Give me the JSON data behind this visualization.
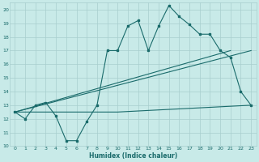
{
  "title": "",
  "xlabel": "Humidex (Indice chaleur)",
  "ylabel": "",
  "bg_color": "#c8eae8",
  "grid_color": "#a8cece",
  "line_color": "#1a6b6b",
  "xlim": [
    -0.5,
    23.5
  ],
  "ylim": [
    10,
    20.5
  ],
  "yticks": [
    10,
    11,
    12,
    13,
    14,
    15,
    16,
    17,
    18,
    19,
    20
  ],
  "xticks": [
    0,
    1,
    2,
    3,
    4,
    5,
    6,
    7,
    8,
    9,
    10,
    11,
    12,
    13,
    14,
    15,
    16,
    17,
    18,
    19,
    20,
    21,
    22,
    23
  ],
  "main_x": [
    0,
    1,
    2,
    3,
    4,
    5,
    6,
    7,
    8,
    9,
    10,
    11,
    12,
    13,
    14,
    15,
    16,
    17,
    18,
    19,
    20,
    21,
    22,
    23
  ],
  "main_y": [
    12.5,
    12.0,
    13.0,
    13.2,
    12.2,
    10.4,
    10.4,
    11.8,
    13.0,
    17.0,
    17.0,
    18.8,
    19.2,
    17.0,
    18.8,
    20.3,
    19.5,
    18.9,
    18.2,
    18.2,
    17.0,
    16.5,
    14.0,
    13.0
  ],
  "line2_x": [
    0,
    23
  ],
  "line2_y": [
    12.5,
    17.0
  ],
  "line3_x": [
    0,
    10,
    23
  ],
  "line3_y": [
    12.5,
    12.5,
    13.0
  ],
  "line4_x": [
    0,
    21
  ],
  "line4_y": [
    12.5,
    17.0
  ]
}
